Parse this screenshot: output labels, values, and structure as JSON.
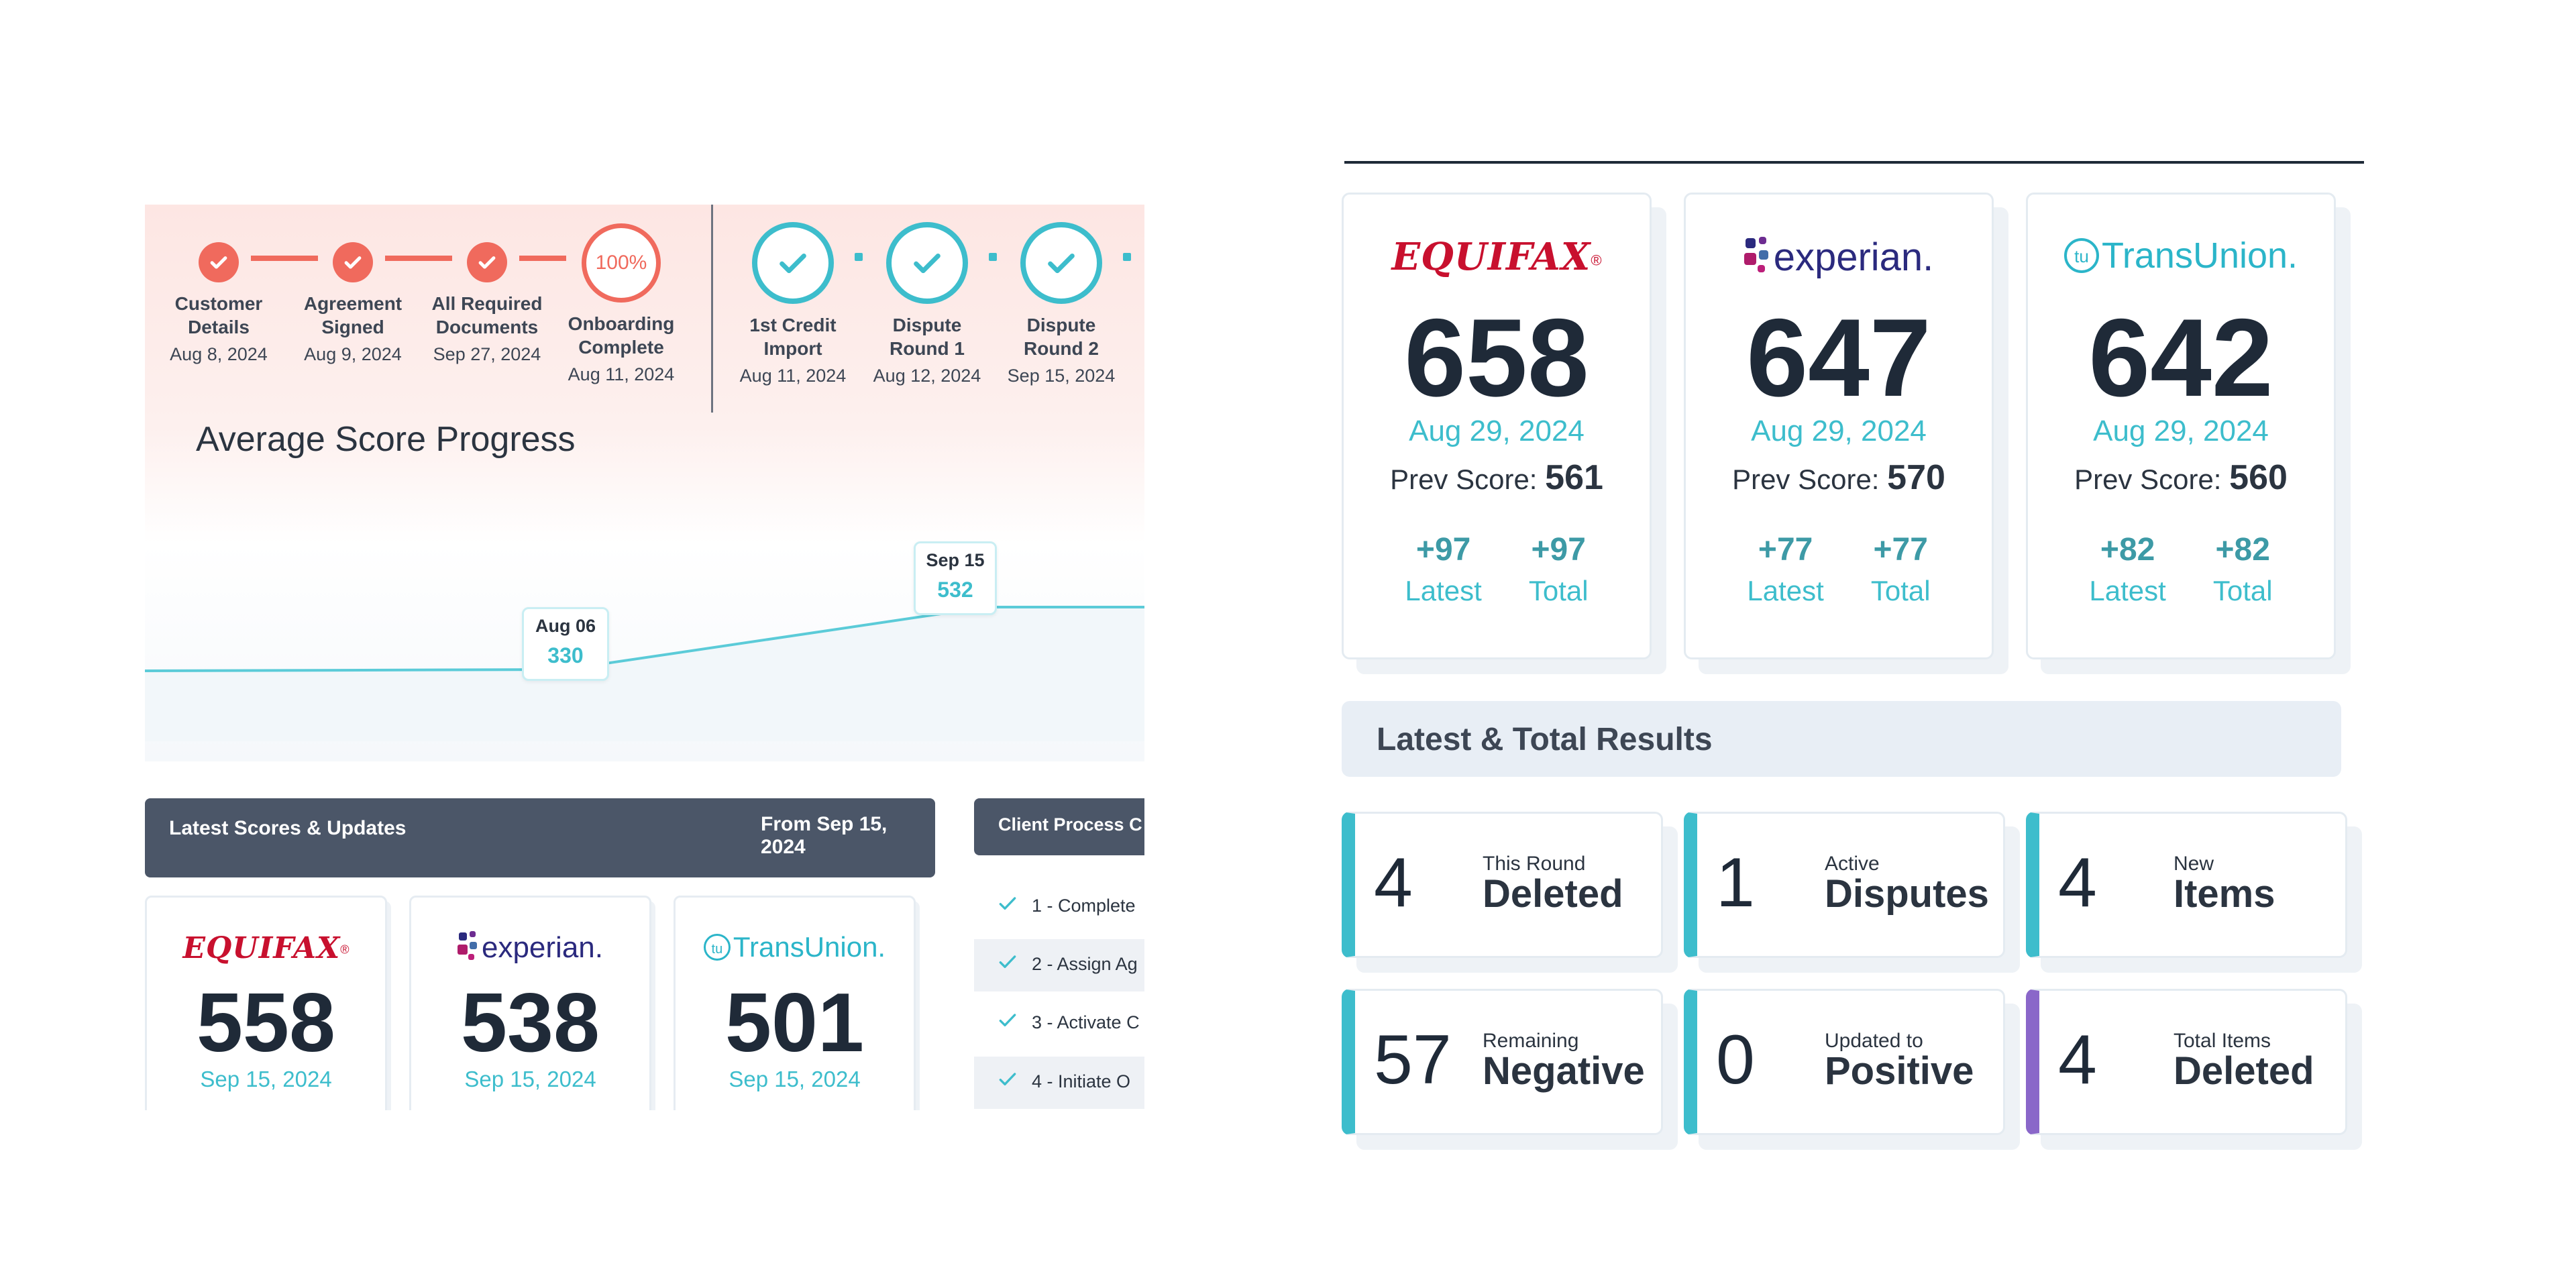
{
  "timeline": {
    "steps": [
      {
        "label": "Customer\nDetails",
        "date": "Aug 8, 2024"
      },
      {
        "label": "Agreement\nSigned",
        "date": "Aug 9, 2024"
      },
      {
        "label": "All Required\nDocuments",
        "date": "Sep 27, 2024"
      },
      {
        "label": "Onboarding\nComplete",
        "date": "Aug 11, 2024",
        "badge": "100%"
      },
      {
        "label": "1st Credit\nImport",
        "date": "Aug 11, 2024"
      },
      {
        "label": "Dispute\nRound 1",
        "date": "Aug 12, 2024"
      },
      {
        "label": "Dispute\nRound 2",
        "date": "Sep 15, 2024"
      }
    ]
  },
  "chart": {
    "title": "Average Score Progress",
    "points": [
      {
        "date": "Aug 06",
        "value": "330"
      },
      {
        "date": "Sep 15",
        "value": "532"
      }
    ]
  },
  "latest_scores": {
    "title": "Latest Scores & Updates",
    "from": "From Sep 15, 2024",
    "cards": [
      {
        "bureau": "equifax",
        "logo_text": "EQUIFAX",
        "score": "558",
        "date": "Sep 15, 2024"
      },
      {
        "bureau": "experian",
        "logo_text": "experian.",
        "score": "538",
        "date": "Sep 15, 2024"
      },
      {
        "bureau": "transunion",
        "logo_text": "TransUnion.",
        "score": "501",
        "date": "Sep 15, 2024"
      }
    ]
  },
  "client_process": {
    "title": "Client Process C",
    "items": [
      "1 - Complete",
      "2 - Assign Ag",
      "3 - Activate C",
      "4 - Initiate O"
    ]
  },
  "bureaus": [
    {
      "logo_text": "EQUIFAX",
      "score": "658",
      "date": "Aug 29, 2024",
      "prev_label": "Prev Score:",
      "prev": "561",
      "latest": "+97",
      "total": "+97",
      "latest_label": "Latest",
      "total_label": "Total"
    },
    {
      "logo_text": "experian.",
      "score": "647",
      "date": "Aug 29, 2024",
      "prev_label": "Prev Score:",
      "prev": "570",
      "latest": "+77",
      "total": "+77",
      "latest_label": "Latest",
      "total_label": "Total"
    },
    {
      "logo_text": "TransUnion.",
      "score": "642",
      "date": "Aug 29, 2024",
      "prev_label": "Prev Score:",
      "prev": "560",
      "latest": "+82",
      "total": "+82",
      "latest_label": "Latest",
      "total_label": "Total"
    }
  ],
  "results": {
    "title": "Latest & Total Results",
    "cards": [
      {
        "value": "4",
        "small": "This Round",
        "big": "Deleted"
      },
      {
        "value": "1",
        "small": "Active",
        "big": "Disputes"
      },
      {
        "value": "4",
        "small": "New",
        "big": "Items"
      },
      {
        "value": "57",
        "small": "Remaining",
        "big": "Negative"
      },
      {
        "value": "0",
        "small": "Updated to",
        "big": "Positive"
      },
      {
        "value": "4",
        "small": "Total Items",
        "big": "Deleted"
      }
    ]
  },
  "colors": {
    "coral": "#f06a5d",
    "teal": "#3dbdcc",
    "navy": "#1f2a38",
    "slate": "#4b5668",
    "purple": "#8a67c9"
  }
}
